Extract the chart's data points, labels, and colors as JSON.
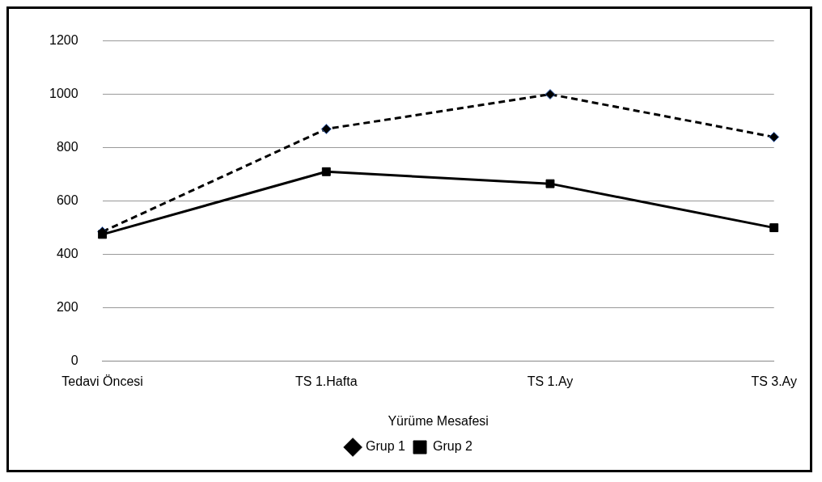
{
  "chart_data": {
    "type": "line",
    "xlabel": "Yürüme Mesafesi",
    "categories": [
      "Tedavi Öncesi",
      "TS 1.Hafta",
      "TS 1.Ay",
      "TS 3.Ay"
    ],
    "series": [
      {
        "name": "Grup 1",
        "color": "#000000",
        "values": [
          485,
          870,
          1000,
          840
        ],
        "line_style": "dashed",
        "marker": "diamond"
      },
      {
        "name": "Grup 2",
        "color": "#000000",
        "values": [
          475,
          710,
          665,
          500
        ],
        "line_style": "solid",
        "marker": "square"
      }
    ],
    "ylim": [
      0,
      1200
    ],
    "yticks": [
      0,
      200,
      400,
      600,
      800,
      1000,
      1200
    ],
    "grid": "y",
    "legend": "bottom"
  }
}
